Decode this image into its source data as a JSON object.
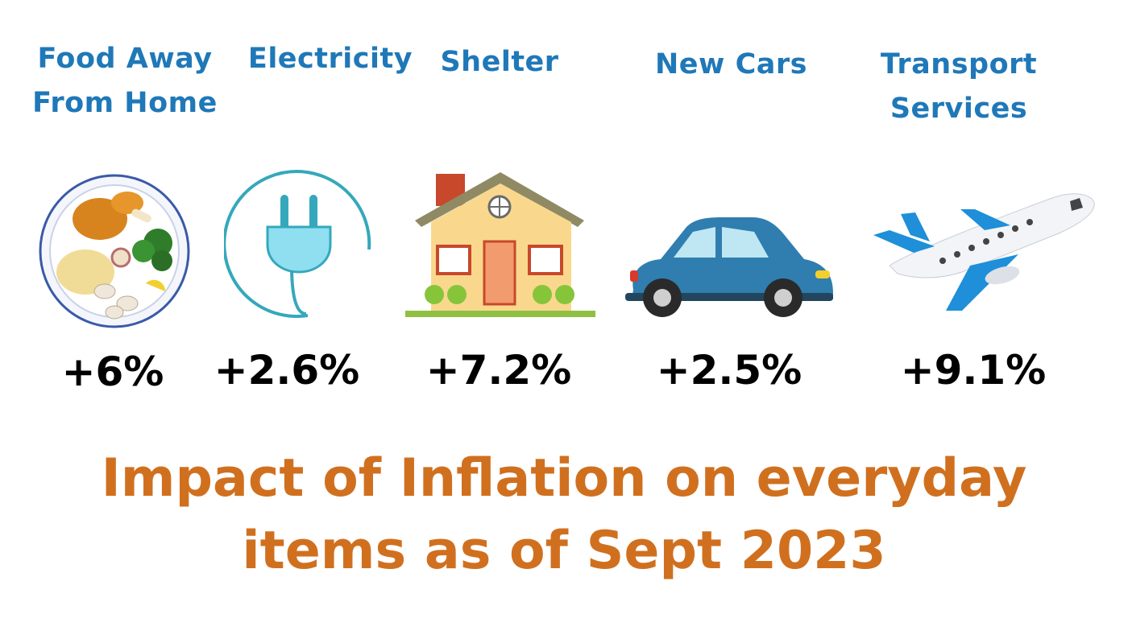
{
  "items": [
    {
      "label_lines": [
        "Food Away",
        "From Home"
      ],
      "change": "+6%",
      "icon": "food-plate-icon"
    },
    {
      "label_lines": [
        "Electricity"
      ],
      "change": "+2.6%",
      "icon": "electric-plug-icon"
    },
    {
      "label_lines": [
        "Shelter"
      ],
      "change": "+7.2%",
      "icon": "house-icon"
    },
    {
      "label_lines": [
        "New Cars"
      ],
      "change": "+2.5%",
      "icon": "car-icon"
    },
    {
      "label_lines": [
        "Transport",
        "Services"
      ],
      "change": "+9.1%",
      "icon": "airplane-icon"
    }
  ],
  "title_lines": [
    "Impact of Inflation on everyday",
    "items as of Sept 2023"
  ],
  "colors": {
    "label": "#1f78b8",
    "change": "#000000",
    "title": "#d0701f"
  }
}
